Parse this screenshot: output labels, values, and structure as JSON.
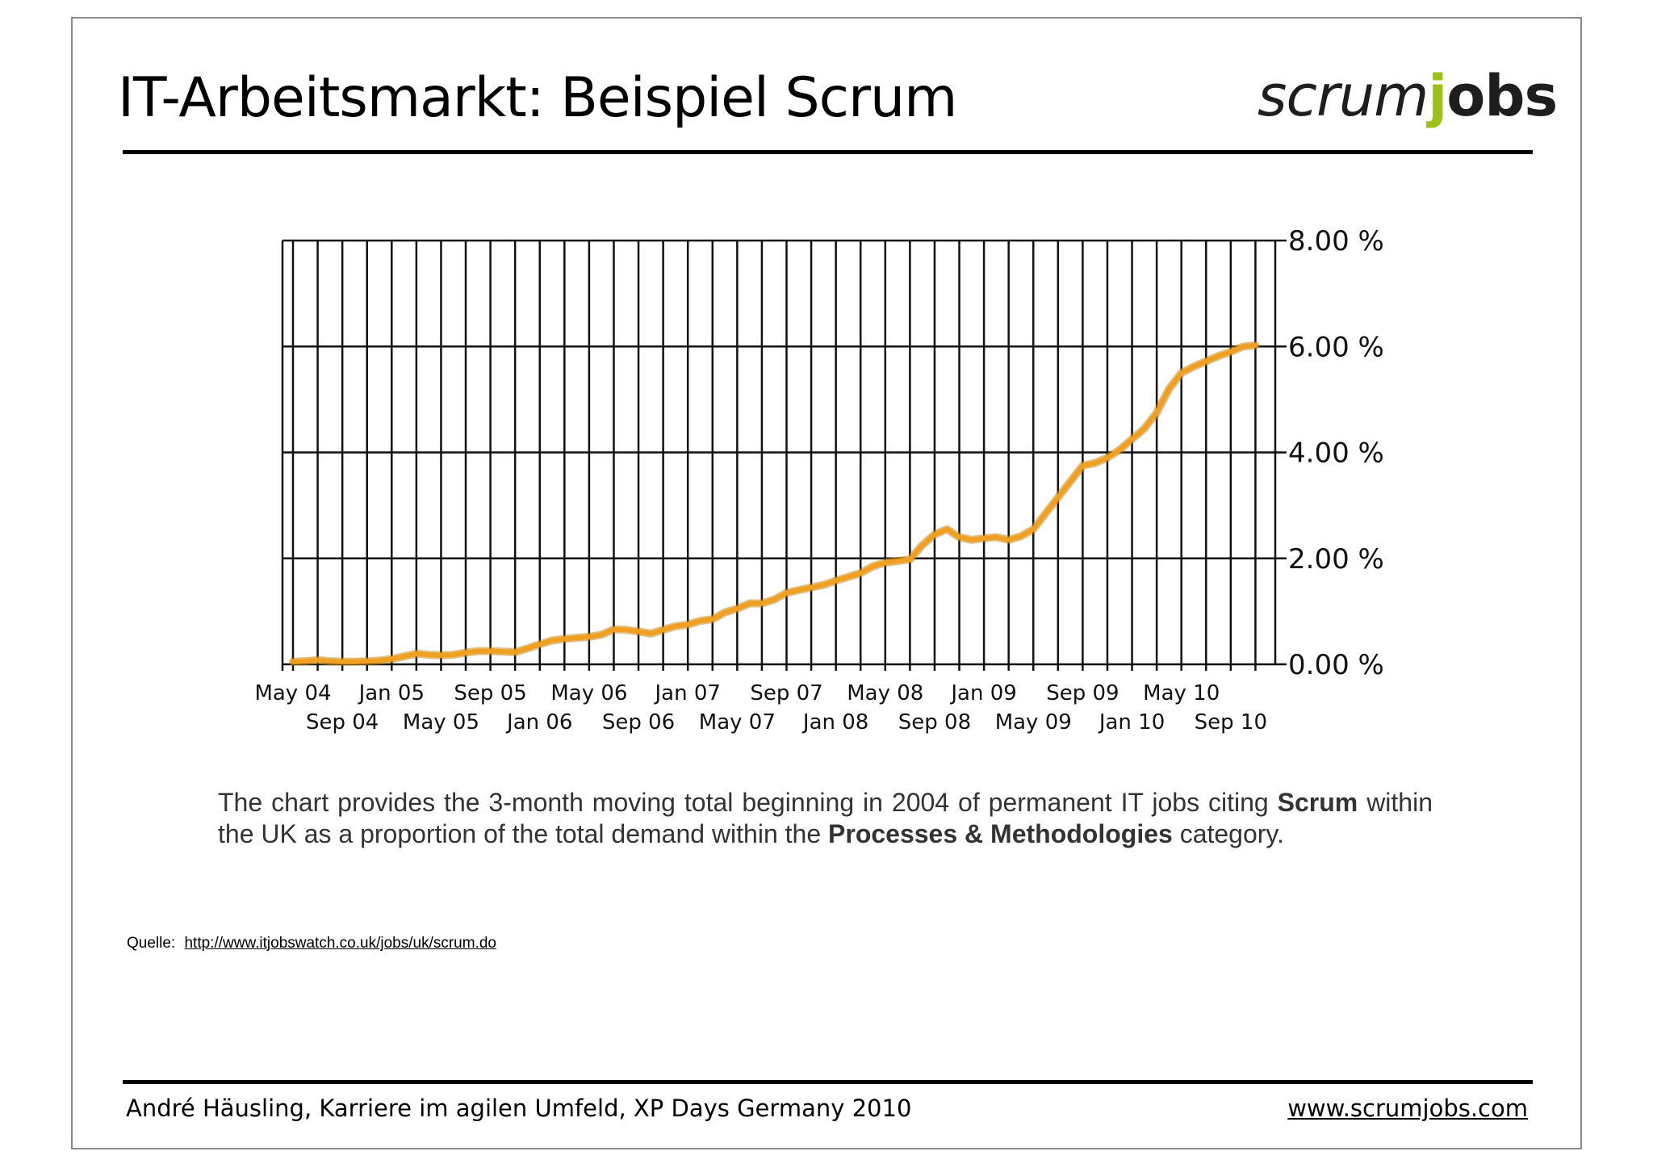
{
  "slide": {
    "title": "IT-Arbeitsmarkt:  Beispiel Scrum",
    "logo": {
      "part1": "scrum",
      "part2": "j",
      "part3": "obs",
      "accent_color": "#9cc21a"
    },
    "caption": {
      "t1": "The chart provides the 3-month moving total beginning in 2004 of permanent IT jobs citing ",
      "b1": "Scrum",
      "t2": " within the UK as a proportion of the total demand within the ",
      "b2": "Processes & Methodologies",
      "t3": " category."
    },
    "source": {
      "label": "Quelle:",
      "url": "http://www.itjobswatch.co.uk/jobs/uk/scrum.do"
    },
    "footer": {
      "left": "André Häusling, Karriere im agilen Umfeld, XP Days Germany 2010",
      "right": "www.scrumjobs.com"
    }
  },
  "chart_data": {
    "type": "line",
    "line_color": "#f0a020",
    "y_ticks": [
      "0.00 %",
      "2.00 %",
      "4.00 %",
      "6.00 %",
      "8.00 %"
    ],
    "y_tick_values": [
      0,
      2,
      4,
      6,
      8
    ],
    "ylim": [
      0,
      8
    ],
    "x_ticks_top": [
      "May 04",
      "Jan 05",
      "Sep 05",
      "May 06",
      "Jan 07",
      "Sep 07",
      "May 08",
      "Jan 09",
      "Sep 09",
      "May 10"
    ],
    "x_ticks_bottom": [
      "Sep 04",
      "May 05",
      "Jan 06",
      "Sep 06",
      "May 07",
      "Jan 08",
      "Sep 08",
      "May 09",
      "Jan 10",
      "Sep 10"
    ],
    "grid": true,
    "y_axis_position": "right",
    "months": [
      "2004-05",
      "2004-06",
      "2004-07",
      "2004-08",
      "2004-09",
      "2004-10",
      "2004-11",
      "2004-12",
      "2005-01",
      "2005-02",
      "2005-03",
      "2005-04",
      "2005-05",
      "2005-06",
      "2005-07",
      "2005-08",
      "2005-09",
      "2005-10",
      "2005-11",
      "2005-12",
      "2006-01",
      "2006-02",
      "2006-03",
      "2006-04",
      "2006-05",
      "2006-06",
      "2006-07",
      "2006-08",
      "2006-09",
      "2006-10",
      "2006-11",
      "2006-12",
      "2007-01",
      "2007-02",
      "2007-03",
      "2007-04",
      "2007-05",
      "2007-06",
      "2007-07",
      "2007-08",
      "2007-09",
      "2007-10",
      "2007-11",
      "2007-12",
      "2008-01",
      "2008-02",
      "2008-03",
      "2008-04",
      "2008-05",
      "2008-06",
      "2008-07",
      "2008-08",
      "2008-09",
      "2008-10",
      "2008-11",
      "2008-12",
      "2009-01",
      "2009-02",
      "2009-03",
      "2009-04",
      "2009-05",
      "2009-06",
      "2009-07",
      "2009-08",
      "2009-09",
      "2009-10",
      "2009-11",
      "2009-12",
      "2010-01",
      "2010-02",
      "2010-03",
      "2010-04",
      "2010-05",
      "2010-06",
      "2010-07",
      "2010-08",
      "2010-09",
      "2010-10",
      "2010-11"
    ],
    "values": [
      0.05,
      0.06,
      0.08,
      0.06,
      0.05,
      0.05,
      0.06,
      0.07,
      0.1,
      0.15,
      0.2,
      0.18,
      0.17,
      0.18,
      0.22,
      0.25,
      0.25,
      0.24,
      0.23,
      0.3,
      0.38,
      0.45,
      0.48,
      0.5,
      0.52,
      0.56,
      0.66,
      0.65,
      0.62,
      0.58,
      0.65,
      0.72,
      0.75,
      0.82,
      0.85,
      0.98,
      1.05,
      1.15,
      1.15,
      1.22,
      1.35,
      1.4,
      1.45,
      1.5,
      1.58,
      1.65,
      1.72,
      1.85,
      1.92,
      1.95,
      1.98,
      2.25,
      2.45,
      2.55,
      2.4,
      2.35,
      2.38,
      2.4,
      2.35,
      2.42,
      2.55,
      2.85,
      3.15,
      3.45,
      3.75,
      3.8,
      3.9,
      4.05,
      4.25,
      4.45,
      4.75,
      5.2,
      5.5,
      5.62,
      5.72,
      5.82,
      5.9,
      6.0,
      6.02
    ]
  }
}
